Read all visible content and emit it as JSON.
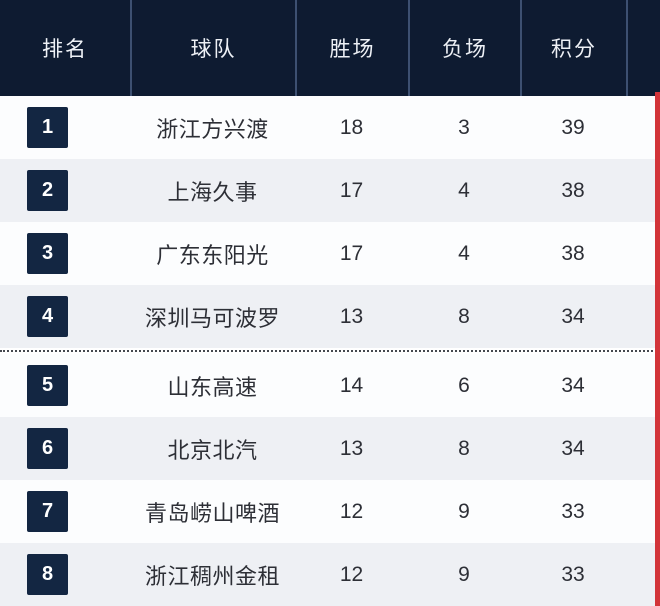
{
  "table": {
    "columns": [
      {
        "key": "rank",
        "label": "排名"
      },
      {
        "key": "team",
        "label": "球队"
      },
      {
        "key": "wins",
        "label": "胜场"
      },
      {
        "key": "losses",
        "label": "负场"
      },
      {
        "key": "points",
        "label": "积分"
      }
    ],
    "rows": [
      {
        "rank": "1",
        "team": "浙江方兴渡",
        "wins": "18",
        "losses": "3",
        "points": "39"
      },
      {
        "rank": "2",
        "team": "上海久事",
        "wins": "17",
        "losses": "4",
        "points": "38"
      },
      {
        "rank": "3",
        "team": "广东东阳光",
        "wins": "17",
        "losses": "4",
        "points": "38"
      },
      {
        "rank": "4",
        "team": "深圳马可波罗",
        "wins": "13",
        "losses": "8",
        "points": "34"
      },
      {
        "rank": "5",
        "team": "山东高速",
        "wins": "14",
        "losses": "6",
        "points": "34"
      },
      {
        "rank": "6",
        "team": "北京北汽",
        "wins": "13",
        "losses": "8",
        "points": "34"
      },
      {
        "rank": "7",
        "team": "青岛崂山啤酒",
        "wins": "12",
        "losses": "9",
        "points": "33"
      },
      {
        "rank": "8",
        "team": "浙江稠州金租",
        "wins": "12",
        "losses": "9",
        "points": "33"
      }
    ],
    "cutoff_after_rank": 4
  },
  "colors": {
    "header_bg": "#0e1b31",
    "header_separator": "#3d5071",
    "badge_bg": "#132642",
    "row_bg": "#fcfdfe",
    "row_alt_bg": "#eef0f4",
    "divider_dots": "#45484f",
    "accent_red": "#d23439"
  }
}
